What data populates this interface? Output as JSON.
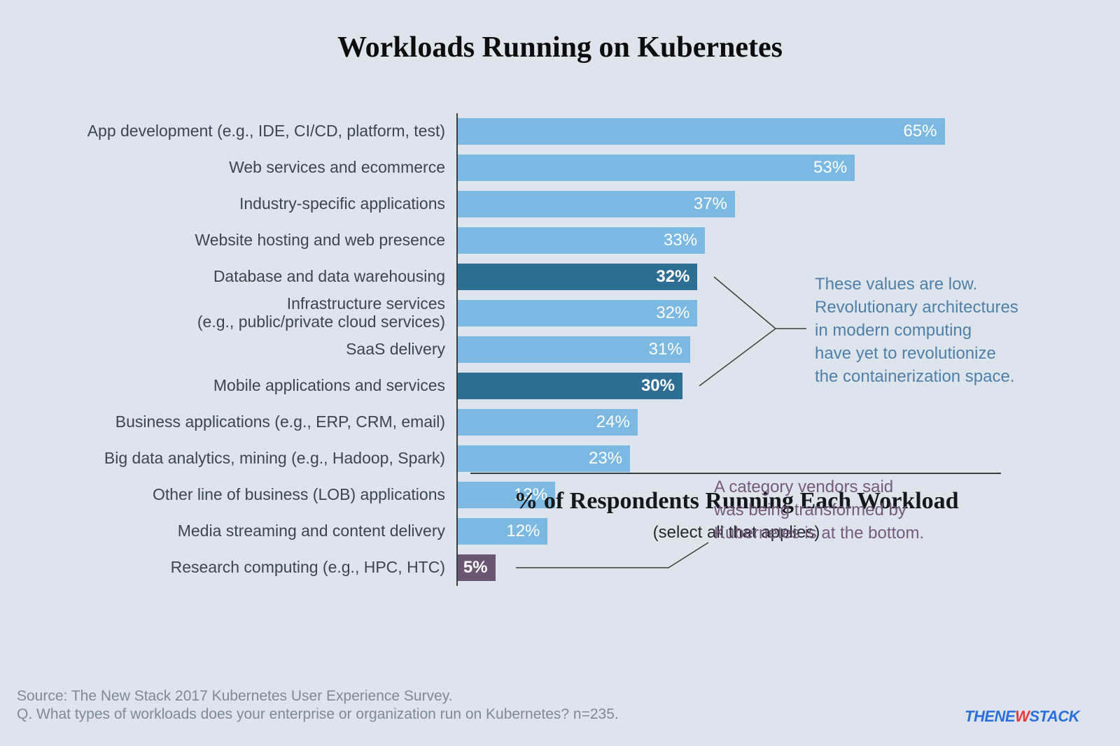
{
  "title": "Workloads Running on Kubernetes",
  "chart_data": {
    "type": "bar",
    "orientation": "horizontal",
    "title": "Workloads Running on Kubernetes",
    "xlabel": "% of Respondents Running Each Workload",
    "xlabel_sub": "(select all that applies)",
    "xlim": [
      0,
      70
    ],
    "grid": false,
    "categories": [
      "App development (e.g., IDE, CI/CD, platform, test)",
      "Web services and ecommerce",
      "Industry-specific applications",
      "Website hosting and web presence",
      "Database and data warehousing",
      "Infrastructure services\n(e.g., public/private cloud services)",
      "SaaS delivery",
      "Mobile applications and services",
      "Business applications (e.g., ERP, CRM, email)",
      "Big data analytics, mining (e.g., Hadoop, Spark)",
      "Other line of business (LOB) applications",
      "Media streaming and content delivery",
      "Research computing (e.g., HPC, HTC)"
    ],
    "values": [
      65,
      53,
      37,
      33,
      32,
      32,
      31,
      30,
      24,
      23,
      13,
      12,
      5
    ],
    "bar_styles": [
      "light",
      "light",
      "light",
      "light",
      "dark",
      "light",
      "light",
      "dark",
      "light",
      "light",
      "light",
      "light",
      "purple"
    ],
    "colors": {
      "light": "#7bb8e2",
      "dark": "#2e6d94",
      "purple": "#6a5572"
    }
  },
  "annotations": {
    "blue_note": {
      "text": "These values are low.\nRevolutionary architectures\nin modern computing\nhave yet to revolutionize\nthe containerization space.",
      "color": "#4e80ab"
    },
    "purple_note": {
      "text": "A category vendors said\nwas being transformed by\nKubernetes is at the bottom.",
      "color": "#77597b"
    }
  },
  "footer": {
    "text": "Source: The New Stack 2017 Kubernetes User Experience Survey.\nQ. What types of workloads does your enterprise or organization run on Kubernetes? n=235."
  },
  "logo": {
    "part1": "THENE",
    "part2": "W",
    "part3": "STACK",
    "blue": "#2a6fdb",
    "red": "#e8383d"
  },
  "background": "#dde4ec"
}
